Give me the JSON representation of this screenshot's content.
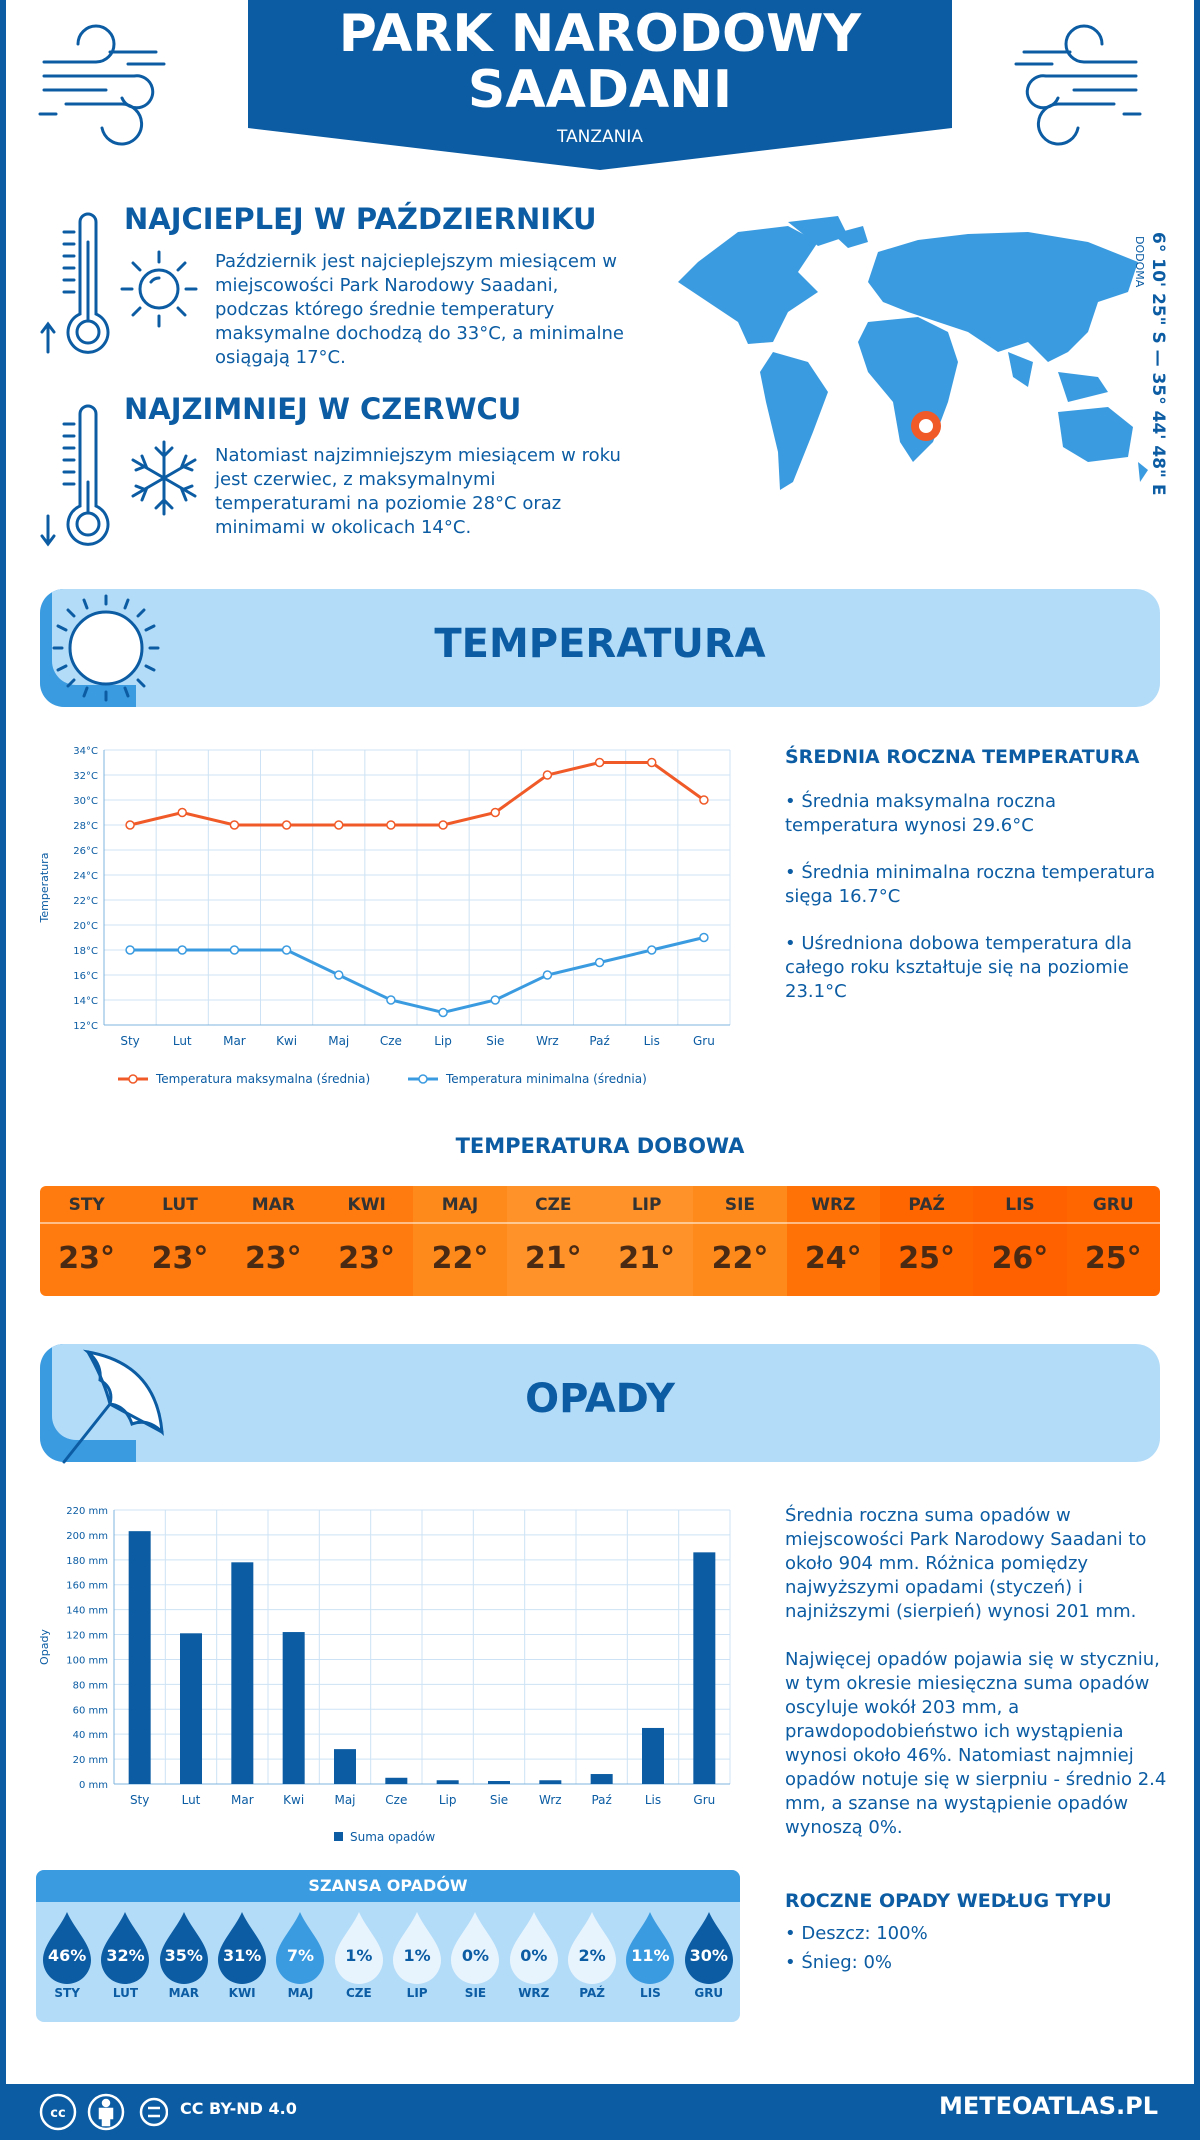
{
  "header": {
    "title_line1": "PARK NARODOWY",
    "title_line2": "SAADANI",
    "country": "TANZANIA"
  },
  "location": {
    "coordinates": "6° 10' 25\" S — 35° 44' 48\" E",
    "capital": "DODOMA"
  },
  "warmest": {
    "title": "NAJCIEPLEJ W PAŹDZIERNIKU",
    "text": "Październik jest najcieplejszym miesiącem w miejscowości Park Narodowy Saadani, podczas którego średnie temperatury maksymalne dochodzą do 33°C, a minimalne osiągają 17°C."
  },
  "coldest": {
    "title": "NAJZIMNIEJ W CZERWCU",
    "text": "Natomiast najzimniejszym miesiącem w roku jest czerwiec, z maksymalnymi temperaturami na poziomie 28°C oraz minimami w okolicach 14°C."
  },
  "temperature": {
    "banner": "TEMPERATURA",
    "side_title": "ŚREDNIA ROCZNA TEMPERATURA",
    "bullets": [
      "• Średnia maksymalna roczna temperatura wynosi 29.6°C",
      "• Średnia minimalna roczna temperatura sięga 16.7°C",
      "• Uśredniona dobowa temperatura dla całego roku kształtuje się na poziomie 23.1°C"
    ],
    "daily_title": "TEMPERATURA DOBOWA",
    "daily": [
      {
        "m": "STY",
        "v": "23°",
        "c": "#ff7b0f"
      },
      {
        "m": "LUT",
        "v": "23°",
        "c": "#ff7b0f"
      },
      {
        "m": "MAR",
        "v": "23°",
        "c": "#ff7b0f"
      },
      {
        "m": "KWI",
        "v": "23°",
        "c": "#ff7b0f"
      },
      {
        "m": "MAJ",
        "v": "22°",
        "c": "#ff8a1c"
      },
      {
        "m": "CZE",
        "v": "21°",
        "c": "#ff9229"
      },
      {
        "m": "LIP",
        "v": "21°",
        "c": "#ff9229"
      },
      {
        "m": "SIE",
        "v": "22°",
        "c": "#ff8a1c"
      },
      {
        "m": "WRZ",
        "v": "24°",
        "c": "#ff7205"
      },
      {
        "m": "PAŹ",
        "v": "25°",
        "c": "#ff6600"
      },
      {
        "m": "LIS",
        "v": "26°",
        "c": "#ff6000"
      },
      {
        "m": "GRU",
        "v": "25°",
        "c": "#ff6600"
      }
    ]
  },
  "chart_data": [
    {
      "type": "line",
      "categories": [
        "Sty",
        "Lut",
        "Mar",
        "Kwi",
        "Maj",
        "Cze",
        "Lip",
        "Sie",
        "Wrz",
        "Paź",
        "Lis",
        "Gru"
      ],
      "series": [
        {
          "name": "Temperatura maksymalna (średnia)",
          "color": "#f05a28",
          "values": [
            28,
            29,
            28,
            28,
            28,
            28,
            28,
            29,
            32,
            33,
            33,
            30
          ]
        },
        {
          "name": "Temperatura minimalna (średnia)",
          "color": "#3b9be0",
          "values": [
            18,
            18,
            18,
            18,
            16,
            14,
            13,
            14,
            16,
            17,
            18,
            19
          ]
        }
      ],
      "ylabel": "Temperatura",
      "ylim": [
        12,
        34
      ],
      "yticks": [
        "12°C",
        "14°C",
        "16°C",
        "18°C",
        "20°C",
        "22°C",
        "24°C",
        "26°C",
        "28°C",
        "30°C",
        "32°C",
        "34°C"
      ],
      "grid": true,
      "legend": "bottom"
    },
    {
      "type": "bar",
      "categories": [
        "Sty",
        "Lut",
        "Mar",
        "Kwi",
        "Maj",
        "Cze",
        "Lip",
        "Sie",
        "Wrz",
        "Paź",
        "Lis",
        "Gru"
      ],
      "series": [
        {
          "name": "Suma opadów",
          "color": "#0b5ca3",
          "values": [
            203,
            121,
            178,
            122,
            28,
            5,
            3,
            2.4,
            3,
            8,
            45,
            186
          ]
        }
      ],
      "ylabel": "Opady",
      "ylim": [
        0,
        220
      ],
      "yticks": [
        "0 mm",
        "20 mm",
        "40 mm",
        "60 mm",
        "80 mm",
        "100 mm",
        "120 mm",
        "140 mm",
        "160 mm",
        "180 mm",
        "200 mm",
        "220 mm"
      ],
      "grid": true,
      "legend": "bottom"
    }
  ],
  "precip": {
    "banner": "OPADY",
    "para1": "Średnia roczna suma opadów w miejscowości Park Narodowy Saadani to około 904 mm. Różnica pomiędzy najwyższymi opadami (styczeń) i najniższymi (sierpień) wynosi 201 mm.",
    "para2": "Najwięcej opadów pojawia się w styczniu, w tym okresie miesięczna suma opadów oscyluje wokół 203 mm, a prawdopodobieństwo ich wystąpienia wynosi około 46%. Natomiast najmniej opadów notuje się w sierpniu - średnio 2.4 mm, a szanse na wystąpienie opadów wynoszą 0%.",
    "chance_title": "SZANSA OPADÓW",
    "chance": [
      {
        "m": "STY",
        "p": "46%",
        "c": "#0b5ca3",
        "t": "#fff"
      },
      {
        "m": "LUT",
        "p": "32%",
        "c": "#0b5ca3",
        "t": "#fff"
      },
      {
        "m": "MAR",
        "p": "35%",
        "c": "#0b5ca3",
        "t": "#fff"
      },
      {
        "m": "KWI",
        "p": "31%",
        "c": "#0b5ca3",
        "t": "#fff"
      },
      {
        "m": "MAJ",
        "p": "7%",
        "c": "#3b9be0",
        "t": "#fff"
      },
      {
        "m": "CZE",
        "p": "1%",
        "c": "#e8f4fd",
        "t": "#0b5ca3"
      },
      {
        "m": "LIP",
        "p": "1%",
        "c": "#e8f4fd",
        "t": "#0b5ca3"
      },
      {
        "m": "SIE",
        "p": "0%",
        "c": "#e8f4fd",
        "t": "#0b5ca3"
      },
      {
        "m": "WRZ",
        "p": "0%",
        "c": "#e8f4fd",
        "t": "#0b5ca3"
      },
      {
        "m": "PAŹ",
        "p": "2%",
        "c": "#e8f4fd",
        "t": "#0b5ca3"
      },
      {
        "m": "LIS",
        "p": "11%",
        "c": "#3b9be0",
        "t": "#fff"
      },
      {
        "m": "GRU",
        "p": "30%",
        "c": "#0b5ca3",
        "t": "#fff"
      }
    ],
    "type_title": "ROCZNE OPADY WEDŁUG TYPU",
    "types": [
      "• Deszcz: 100%",
      "• Śnieg: 0%"
    ]
  },
  "footer": {
    "license": "CC BY-ND 4.0",
    "site": "METEOATLAS.PL"
  },
  "icons": [
    "wind-icon",
    "thermometer-up-icon",
    "sun-icon",
    "thermometer-down-icon",
    "snowflake-icon",
    "world-map",
    "location-marker-icon",
    "umbrella-icon",
    "raindrop-icon",
    "cc-icon",
    "person-icon",
    "equals-icon"
  ]
}
